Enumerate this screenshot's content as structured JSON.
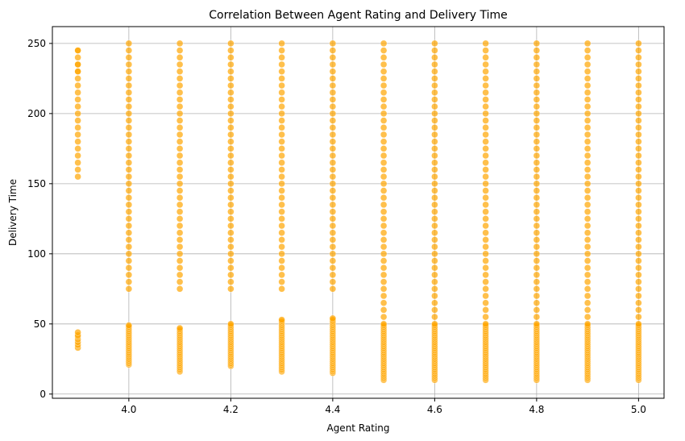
{
  "chart_data": {
    "type": "scatter",
    "title": "Correlation Between Agent Rating and Delivery Time",
    "xlabel": "Agent Rating",
    "ylabel": "Delivery Time",
    "xlim": [
      3.85,
      5.05
    ],
    "ylim": [
      -3,
      262
    ],
    "xticks": [
      4.0,
      4.2,
      4.4,
      4.6,
      4.8,
      5.0
    ],
    "xtick_labels": [
      "4.0",
      "4.2",
      "4.4",
      "4.6",
      "4.8",
      "5.0"
    ],
    "yticks": [
      0,
      50,
      100,
      150,
      200,
      250
    ],
    "ytick_labels": [
      "0",
      "50",
      "100",
      "150",
      "200",
      "250"
    ],
    "grid": true,
    "marker_color": "#FFA500",
    "marker_alpha": 0.7,
    "series": [
      {
        "points_by_rating": [
          {
            "x": 3.9,
            "low": [
              33,
              35,
              37,
              39,
              41,
              42,
              44
            ],
            "high_range": [
              155,
              245
            ],
            "high_step": 5,
            "high_extra": [
              230,
              235,
              245
            ]
          },
          {
            "x": 4.0,
            "low_range": [
              21,
              49
            ],
            "low_step": 1,
            "high_range": [
              75,
              250
            ],
            "high_step": 5
          },
          {
            "x": 4.1,
            "low_range": [
              16,
              47
            ],
            "low_step": 1,
            "high_range": [
              75,
              250
            ],
            "high_step": 5
          },
          {
            "x": 4.2,
            "low_range": [
              20,
              50
            ],
            "low_step": 1,
            "high_range": [
              75,
              250
            ],
            "high_step": 5
          },
          {
            "x": 4.3,
            "low_range": [
              16,
              53
            ],
            "low_step": 1,
            "high_range": [
              75,
              250
            ],
            "high_step": 5
          },
          {
            "x": 4.4,
            "low_range": [
              15,
              54
            ],
            "low_step": 1,
            "high_range": [
              75,
              250
            ],
            "high_step": 5
          },
          {
            "x": 4.5,
            "low_range": [
              10,
              50
            ],
            "low_step": 1,
            "high_range": [
              55,
              250
            ],
            "high_step": 5
          },
          {
            "x": 4.6,
            "low_range": [
              10,
              50
            ],
            "low_step": 1,
            "high_range": [
              55,
              250
            ],
            "high_step": 5
          },
          {
            "x": 4.7,
            "low_range": [
              10,
              50
            ],
            "low_step": 1,
            "high_range": [
              55,
              250
            ],
            "high_step": 5
          },
          {
            "x": 4.8,
            "low_range": [
              10,
              50
            ],
            "low_step": 1,
            "high_range": [
              55,
              250
            ],
            "high_step": 5
          },
          {
            "x": 4.9,
            "low_range": [
              10,
              50
            ],
            "low_step": 1,
            "high_range": [
              55,
              250
            ],
            "high_step": 5
          },
          {
            "x": 5.0,
            "low_range": [
              10,
              50
            ],
            "low_step": 1,
            "high_range": [
              55,
              250
            ],
            "high_step": 5
          }
        ]
      }
    ]
  }
}
